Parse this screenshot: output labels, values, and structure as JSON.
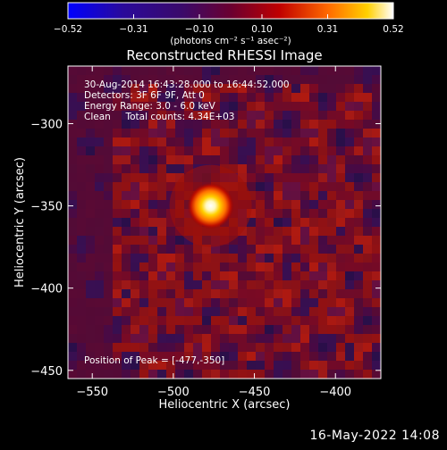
{
  "chart_data": {
    "type": "heatmap",
    "title": "Reconstructed RHESSI Image",
    "xlabel": "Heliocentric X (arcsec)",
    "ylabel": "Heliocentric Y (arcsec)",
    "xlim": [
      -565,
      -372
    ],
    "ylim": [
      -455,
      -265
    ],
    "x_ticks": [
      -550,
      -500,
      -450,
      -400
    ],
    "y_ticks": [
      -300,
      -350,
      -400,
      -450
    ],
    "colorbar": {
      "range": [
        -0.52,
        0.52
      ],
      "ticks": [
        -0.52,
        -0.31,
        -0.1,
        0.1,
        0.31,
        0.52
      ],
      "tick_labels": [
        "−0.52",
        "−0.31",
        "−0.10",
        "0.10",
        "0.31",
        "0.52"
      ],
      "unit_label": "(photons cm⁻² s⁻¹ asec⁻²)",
      "colormap": "RHESSI blue-purple-red-yellow-white"
    },
    "peak": {
      "x": -477,
      "y": -350,
      "value": 0.52
    },
    "annotations": [
      "30-Aug-2014 16:43:28.000 to 16:44:52.000",
      "Detectors: 3F 6F 9F, Att 0",
      "Energy Range: 3.0 - 6.0 keV",
      "Clean     Total counts: 4.34E+03"
    ],
    "peak_label": "Position of Peak = [-477,-350]"
  },
  "footer_date": "16-May-2022 14:08"
}
